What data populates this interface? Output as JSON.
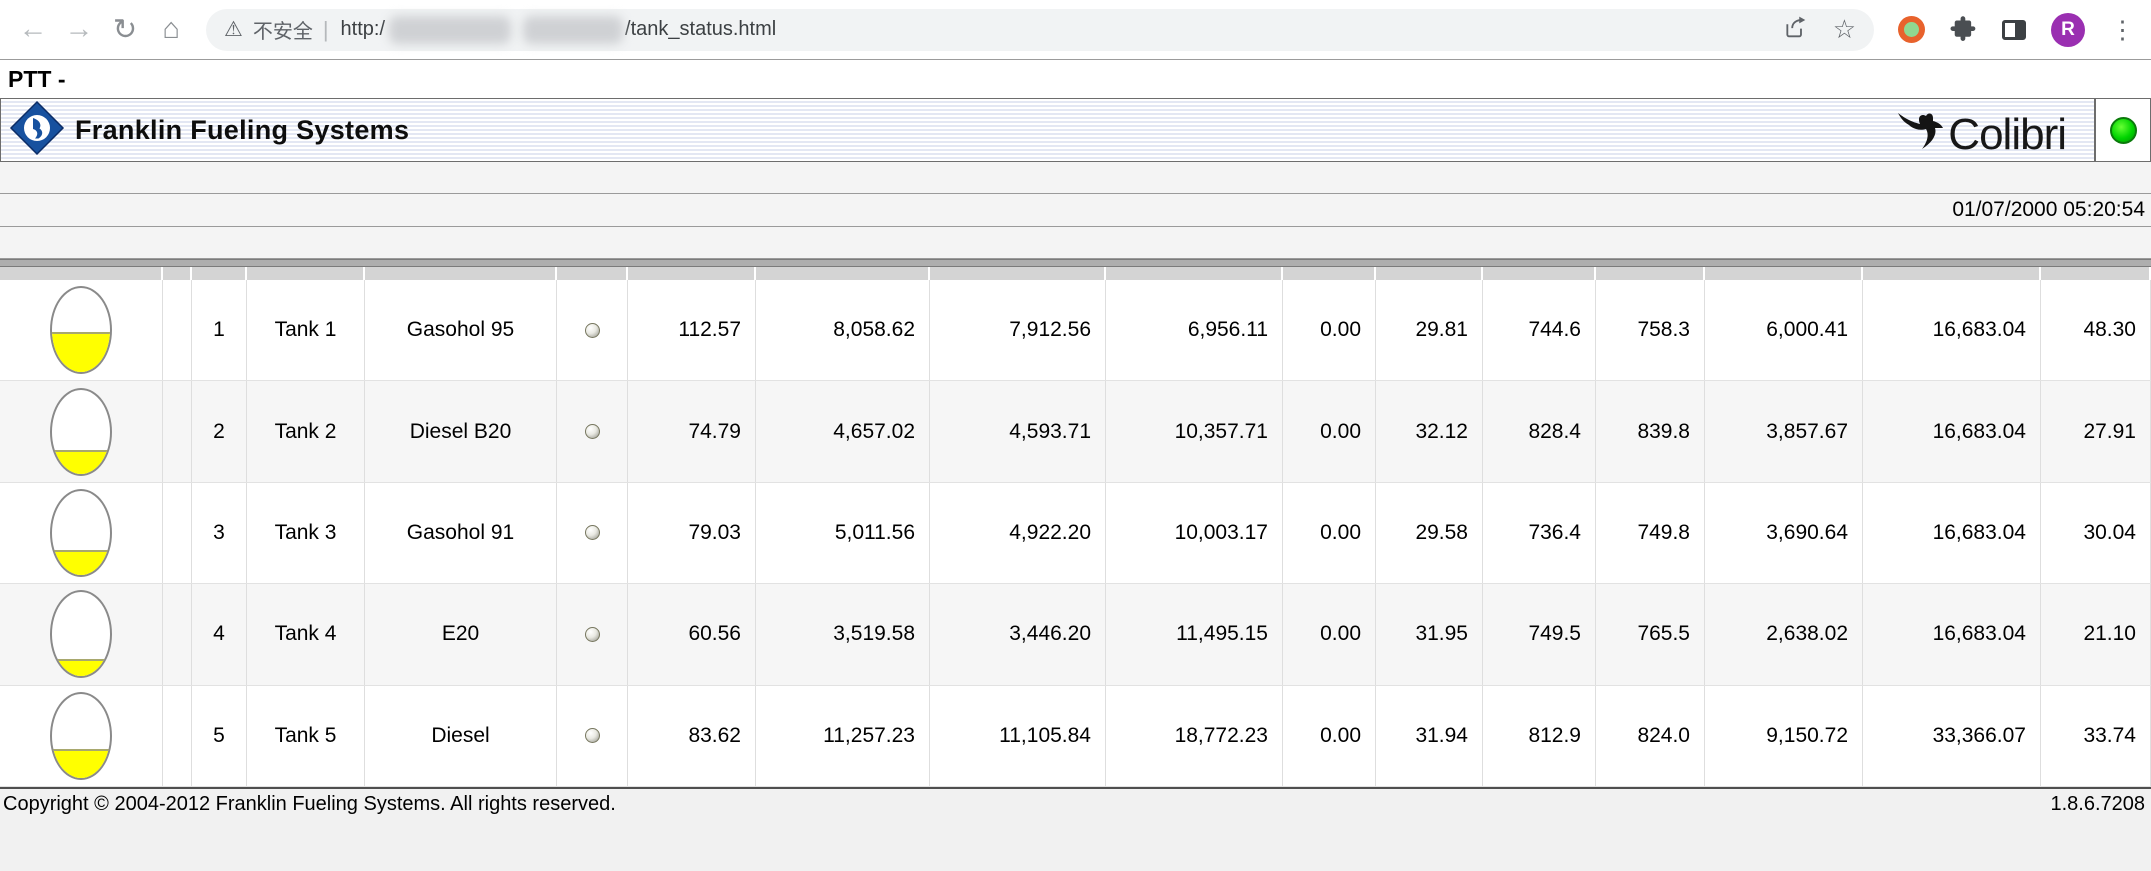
{
  "browser": {
    "security_label": "不安全",
    "url_scheme": "http:/",
    "url_path": "/tank_status.html",
    "profile_initial": "R",
    "icons": {
      "back": "←",
      "forward": "→",
      "reload": "↻",
      "home": "⌂",
      "warning": "⚠",
      "divider": "|",
      "star": "☆",
      "menu": "⋮"
    }
  },
  "page": {
    "window_title": "PTT -",
    "brand": "Franklin Fueling Systems",
    "logo": "Colibri",
    "timestamp": "01/07/2000 05:20:54",
    "footer_copyright": "Copyright © 2004-2012 Franklin Fueling Systems. All rights reserved.",
    "footer_version": "1.8.6.7208"
  },
  "colors": {
    "brand_blue": "#17519f",
    "tank_fill_yellow": "#ffff00",
    "status_green": "#00d400",
    "header_stripe": "#e3e7f3"
  },
  "tank_table": {
    "rows": [
      {
        "fill_pct": 48,
        "id": "1",
        "name": "Tank 1",
        "product": "Gasohol 95",
        "values": [
          "112.57",
          "8,058.62",
          "7,912.56",
          "6,956.11",
          "0.00",
          "29.81",
          "744.6",
          "758.3",
          "6,000.41",
          "16,683.04",
          "48.30"
        ]
      },
      {
        "fill_pct": 28,
        "id": "2",
        "name": "Tank 2",
        "product": "Diesel B20",
        "values": [
          "74.79",
          "4,657.02",
          "4,593.71",
          "10,357.71",
          "0.00",
          "32.12",
          "828.4",
          "839.8",
          "3,857.67",
          "16,683.04",
          "27.91"
        ]
      },
      {
        "fill_pct": 30,
        "id": "3",
        "name": "Tank 3",
        "product": "Gasohol 91",
        "values": [
          "79.03",
          "5,011.56",
          "4,922.20",
          "10,003.17",
          "0.00",
          "29.58",
          "736.4",
          "749.8",
          "3,690.64",
          "16,683.04",
          "30.04"
        ]
      },
      {
        "fill_pct": 21,
        "id": "4",
        "name": "Tank 4",
        "product": "E20",
        "values": [
          "60.56",
          "3,519.58",
          "3,446.20",
          "11,495.15",
          "0.00",
          "31.95",
          "749.5",
          "765.5",
          "2,638.02",
          "16,683.04",
          "21.10"
        ]
      },
      {
        "fill_pct": 34,
        "id": "5",
        "name": "Tank 5",
        "product": "Diesel",
        "values": [
          "83.62",
          "11,257.23",
          "11,105.84",
          "18,772.23",
          "0.00",
          "31.94",
          "812.9",
          "824.0",
          "9,150.72",
          "33,366.07",
          "33.74"
        ]
      }
    ]
  }
}
